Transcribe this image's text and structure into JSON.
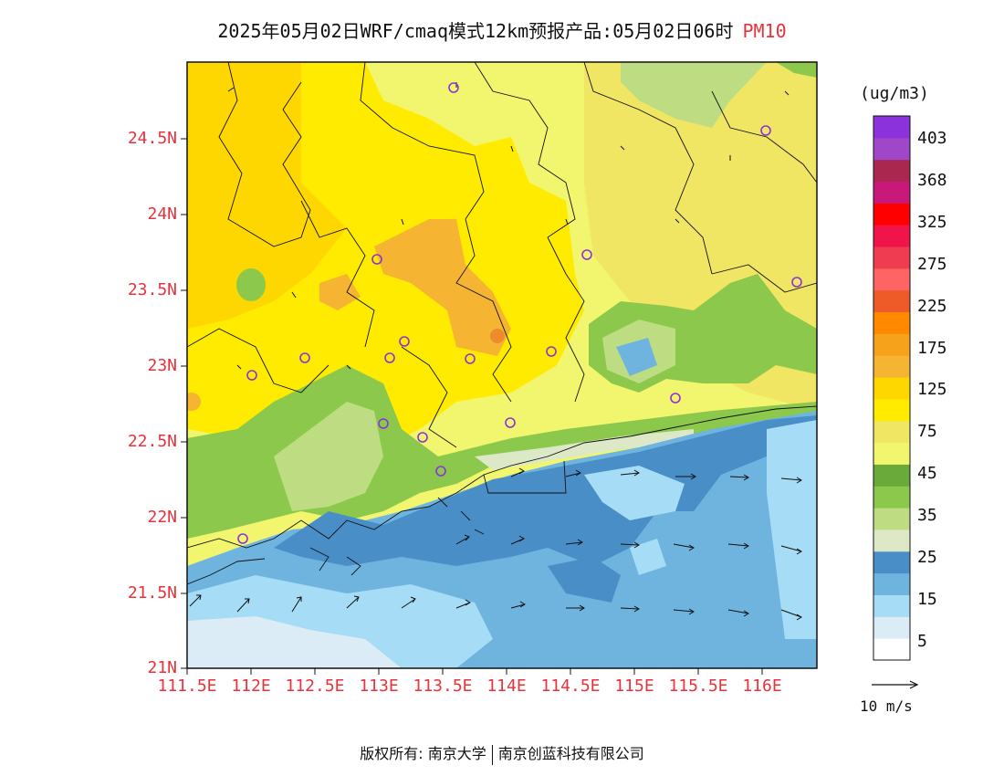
{
  "title": {
    "main": "2025年05月02日WRF/cmaq模式12km预报产品:05月02日06时",
    "variable": "PM10"
  },
  "axes": {
    "lat_labels": [
      "24.5N",
      "24N",
      "23.5N",
      "23N",
      "22.5N",
      "22N",
      "21.5N",
      "21N"
    ],
    "lon_labels": [
      "111.5E",
      "112E",
      "112.5E",
      "113E",
      "113.5E",
      "114E",
      "114.5E",
      "115E",
      "115.5E",
      "116E"
    ]
  },
  "colorbar": {
    "unit": "(ug/m3)",
    "labels": [
      "403",
      "368",
      "325",
      "275",
      "225",
      "175",
      "125",
      "75",
      "45",
      "35",
      "25",
      "15",
      "5"
    ],
    "colors": [
      "#ffffff",
      "#dcecf6",
      "#a6dcf5",
      "#6eb4df",
      "#4a8ec8",
      "#dce8c6",
      "#bedd82",
      "#8cc84b",
      "#6aaa3a",
      "#f2f56e",
      "#f0e664",
      "#ffeb00",
      "#ffd700",
      "#f5b432",
      "#f7a21b",
      "#ff8a00",
      "#ee5a28",
      "#ff6464",
      "#f03c50",
      "#f0144b",
      "#ff0000",
      "#c8187a",
      "#aa2850",
      "#a046c8",
      "#8c32dc"
    ]
  },
  "wind_legend": {
    "label": "10 m/s"
  },
  "footer": {
    "copyright": "版权所有: 南京大学",
    "company": "南京创蓝科技有限公司"
  }
}
